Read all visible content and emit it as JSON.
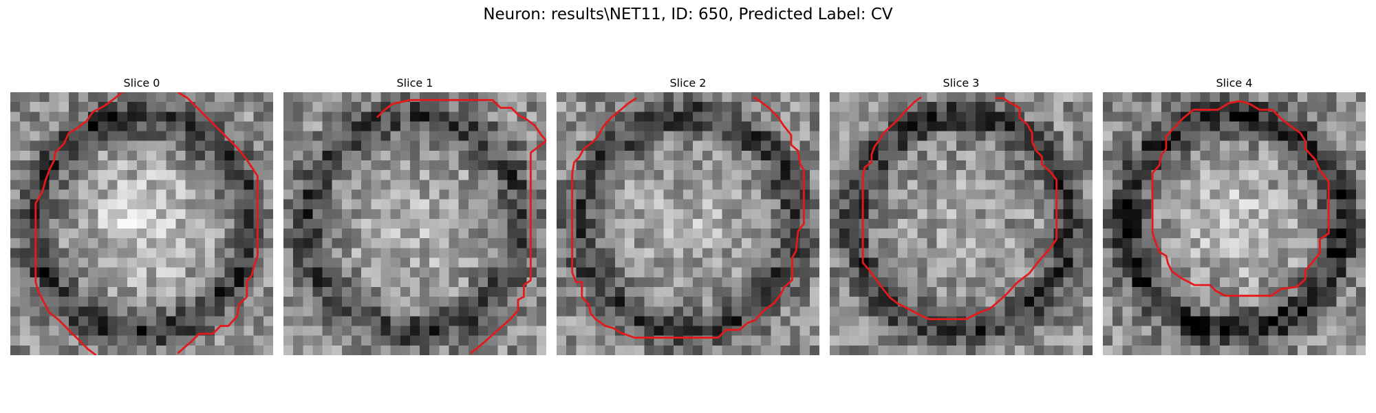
{
  "figure": {
    "title": "Neuron: results\\NET11, ID: 650, Predicted Label: CV"
  },
  "colors": {
    "contour": "#e31a1c",
    "background": "#ffffff"
  },
  "image": {
    "grid_size": 27,
    "colormap": "grayscale"
  },
  "panels": [
    {
      "title": "Slice 0",
      "seed": 11,
      "center_brightness": 0.85,
      "ring_darkness": 0.35,
      "contour": [
        [
          11.5,
          0
        ],
        [
          10.5,
          0.8
        ],
        [
          9.5,
          1.5
        ],
        [
          8.5,
          2.0
        ],
        [
          7.8,
          3.0
        ],
        [
          7,
          3.6
        ],
        [
          6,
          4.2
        ],
        [
          5.5,
          5.3
        ],
        [
          4.6,
          6.2
        ],
        [
          4.5,
          7.0
        ],
        [
          4,
          8.0
        ],
        [
          3.6,
          9.1
        ],
        [
          3.3,
          10.2
        ],
        [
          2.6,
          11.4
        ],
        [
          2.6,
          13.0
        ],
        [
          2.6,
          17.0
        ],
        [
          2.6,
          19.5
        ],
        [
          2.9,
          20.5
        ],
        [
          3.2,
          21.1
        ],
        [
          4,
          22.6
        ],
        [
          5,
          23.4
        ],
        [
          6,
          24.4
        ],
        [
          7,
          25.4
        ],
        [
          8,
          26.4
        ],
        [
          8.8,
          27
        ]
      ],
      "contour2": [
        [
          17.2,
          0
        ],
        [
          18.2,
          0.6
        ],
        [
          19.2,
          1.6
        ],
        [
          20.4,
          2.8
        ],
        [
          21.4,
          3.8
        ],
        [
          22.4,
          4.8
        ],
        [
          23.4,
          5.8
        ],
        [
          24.2,
          6.8
        ],
        [
          24.8,
          7.7
        ],
        [
          25.4,
          8.6
        ],
        [
          25.4,
          10
        ],
        [
          25.4,
          14
        ],
        [
          25.4,
          16.8
        ],
        [
          25,
          18
        ],
        [
          24.8,
          18.8
        ],
        [
          24.3,
          19.4
        ],
        [
          24.3,
          21
        ],
        [
          23.5,
          21.8
        ],
        [
          23.3,
          23
        ],
        [
          22.4,
          24
        ],
        [
          21.6,
          24
        ],
        [
          20.8,
          24.8
        ],
        [
          19.4,
          24.8
        ],
        [
          18.6,
          25.6
        ],
        [
          17.2,
          26.8
        ]
      ]
    },
    {
      "title": "Slice 1",
      "seed": 23,
      "center_brightness": 0.72,
      "ring_darkness": 0.3,
      "contour": [
        [
          9.6,
          2.6
        ],
        [
          10.4,
          1.8
        ],
        [
          11.2,
          1.2
        ],
        [
          13,
          0.8
        ],
        [
          15,
          0.8
        ],
        [
          19,
          0.8
        ],
        [
          21.5,
          0.8
        ],
        [
          22.3,
          1.6
        ],
        [
          23.4,
          1.6
        ],
        [
          24.2,
          2.4
        ],
        [
          25,
          2.8
        ],
        [
          25.8,
          3.4
        ],
        [
          26.5,
          4.4
        ],
        [
          27,
          5
        ],
        [
          25.4,
          6.2
        ],
        [
          25.4,
          8
        ],
        [
          25.4,
          12
        ],
        [
          25.4,
          16
        ],
        [
          25.4,
          19.3
        ],
        [
          24.7,
          19.8
        ],
        [
          24.7,
          21
        ],
        [
          24.1,
          21.3
        ],
        [
          24.1,
          22.4
        ],
        [
          23.3,
          23.3
        ],
        [
          22.5,
          24
        ],
        [
          21.6,
          24.8
        ],
        [
          20.7,
          25.6
        ],
        [
          20,
          26.2
        ],
        [
          19.2,
          26.8
        ]
      ]
    },
    {
      "title": "Slice 2",
      "seed": 37,
      "center_brightness": 0.7,
      "ring_darkness": 0.32,
      "contour": [
        [
          8.2,
          0.6
        ],
        [
          7.3,
          1.2
        ],
        [
          6.6,
          1.8
        ],
        [
          5.6,
          2.6
        ],
        [
          4.8,
          3.5
        ],
        [
          4.2,
          4.6
        ],
        [
          3.6,
          5.2
        ],
        [
          2.8,
          5.8
        ],
        [
          2.3,
          6.7
        ],
        [
          1.8,
          7.2
        ],
        [
          1.6,
          8.4
        ],
        [
          1.6,
          12
        ],
        [
          1.6,
          16
        ],
        [
          1.6,
          18.5
        ],
        [
          2,
          19.5
        ],
        [
          2.6,
          19.5
        ],
        [
          2.6,
          21
        ],
        [
          3.3,
          21.8
        ],
        [
          3.5,
          22.7
        ],
        [
          4,
          23.3
        ],
        [
          5,
          24
        ],
        [
          5.8,
          24.2
        ],
        [
          6.6,
          24.7
        ],
        [
          8,
          25.2
        ],
        [
          9.3,
          25.2
        ],
        [
          12,
          25.2
        ],
        [
          15,
          25.2
        ],
        [
          16.6,
          25.2
        ],
        [
          17.4,
          24.4
        ],
        [
          18.8,
          24.4
        ],
        [
          19.6,
          23.7
        ],
        [
          20.4,
          23.4
        ],
        [
          21.3,
          22.4
        ],
        [
          22.4,
          21.6
        ],
        [
          23,
          20.8
        ],
        [
          23.4,
          20
        ],
        [
          24.2,
          19.3
        ],
        [
          24.2,
          17
        ],
        [
          24.6,
          16.3
        ],
        [
          24.8,
          14.3
        ],
        [
          25.4,
          13.5
        ],
        [
          25.4,
          11
        ],
        [
          25.4,
          8
        ],
        [
          25,
          7.3
        ],
        [
          24.8,
          6
        ],
        [
          24.1,
          5.4
        ],
        [
          24.1,
          4.4
        ],
        [
          23.3,
          3.4
        ],
        [
          22.8,
          2.6
        ],
        [
          21.8,
          1.6
        ],
        [
          21,
          1
        ],
        [
          20.2,
          0.5
        ]
      ]
    },
    {
      "title": "Slice 3",
      "seed": 51,
      "center_brightness": 0.66,
      "ring_darkness": 0.34,
      "contour": [
        [
          9.4,
          0.5
        ],
        [
          8.7,
          1.0
        ],
        [
          7.8,
          1.9
        ],
        [
          7.2,
          2.6
        ],
        [
          6.5,
          3.3
        ],
        [
          5.6,
          4.1
        ],
        [
          5.1,
          4.9
        ],
        [
          4.6,
          5.6
        ],
        [
          4.3,
          6.4
        ],
        [
          4.3,
          7.2
        ],
        [
          3.6,
          7.7
        ],
        [
          3.4,
          8.6
        ],
        [
          3.4,
          12
        ],
        [
          3.4,
          15
        ],
        [
          3.4,
          17.5
        ],
        [
          4,
          18.2
        ],
        [
          4.8,
          19.3
        ],
        [
          5.4,
          20.1
        ],
        [
          6.2,
          21.1
        ],
        [
          7,
          21.7
        ],
        [
          8,
          22.2
        ],
        [
          9.3,
          22.9
        ],
        [
          10.2,
          23.3
        ],
        [
          12,
          23.3
        ],
        [
          14,
          23.3
        ],
        [
          15.2,
          22.7
        ],
        [
          16.5,
          22.2
        ],
        [
          17.3,
          21.5
        ],
        [
          18.1,
          20.8
        ],
        [
          19.2,
          19.6
        ],
        [
          20.5,
          18.6
        ],
        [
          21.6,
          17.2
        ],
        [
          22.5,
          16.2
        ],
        [
          23.3,
          15.1
        ],
        [
          23.3,
          13
        ],
        [
          23.3,
          11
        ],
        [
          23.3,
          9
        ],
        [
          22.7,
          8.2
        ],
        [
          21.8,
          7.4
        ],
        [
          21.8,
          6.6
        ],
        [
          21.2,
          6
        ],
        [
          20.8,
          5.1
        ],
        [
          20.8,
          4.2
        ],
        [
          20.3,
          3.3
        ],
        [
          19.5,
          2.6
        ],
        [
          19.5,
          1.6
        ],
        [
          18.4,
          1.0
        ],
        [
          17.8,
          0.6
        ],
        [
          17,
          0.6
        ]
      ]
    },
    {
      "title": "Slice 4",
      "seed": 67,
      "center_brightness": 0.8,
      "ring_darkness": 0.4,
      "contour": [
        [
          6.5,
          4.5
        ],
        [
          7.3,
          3.7
        ],
        [
          8.2,
          2.7
        ],
        [
          9.3,
          1.8
        ],
        [
          10.1,
          1.8
        ],
        [
          11.8,
          1.8
        ],
        [
          13,
          1.1
        ],
        [
          14.1,
          0.9
        ],
        [
          15.1,
          1.2
        ],
        [
          16.1,
          1.8
        ],
        [
          17.4,
          1.8
        ],
        [
          18.3,
          2.7
        ],
        [
          19.2,
          3.4
        ],
        [
          20.3,
          4.2
        ],
        [
          20.8,
          5
        ],
        [
          20.8,
          5.8
        ],
        [
          21.8,
          6.9
        ],
        [
          22.3,
          8
        ],
        [
          23.2,
          9.2
        ],
        [
          23.2,
          11
        ],
        [
          23.2,
          12.8
        ],
        [
          23.2,
          14.5
        ],
        [
          22.3,
          15.1
        ],
        [
          22.3,
          16.5
        ],
        [
          21.5,
          17.5
        ],
        [
          20.8,
          18.3
        ],
        [
          20.8,
          19.2
        ],
        [
          19.9,
          20
        ],
        [
          18.3,
          20.2
        ],
        [
          17.3,
          20.9
        ],
        [
          16.5,
          20.9
        ],
        [
          14,
          20.9
        ],
        [
          12.6,
          20.9
        ],
        [
          11.6,
          20.4
        ],
        [
          11,
          19.8
        ],
        [
          9.4,
          19.8
        ],
        [
          8.1,
          19.1
        ],
        [
          7.1,
          18.4
        ],
        [
          6.7,
          17.6
        ],
        [
          6.5,
          16.8
        ],
        [
          5.8,
          16.4
        ],
        [
          5.3,
          15.1
        ],
        [
          5.1,
          14.4
        ],
        [
          5.1,
          12
        ],
        [
          5.1,
          10
        ],
        [
          5.1,
          8.3
        ],
        [
          5.8,
          7.5
        ],
        [
          6,
          6.5
        ],
        [
          6.5,
          5.8
        ],
        [
          6.5,
          4.5
        ]
      ]
    }
  ]
}
